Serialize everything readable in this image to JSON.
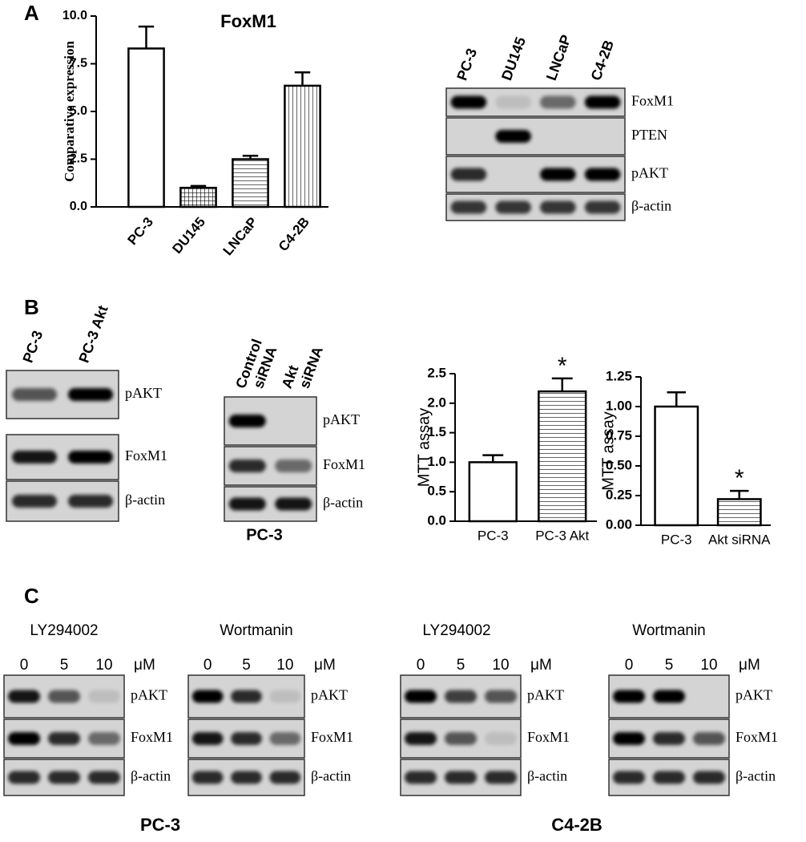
{
  "panel_labels": [
    "A",
    "B",
    "C"
  ],
  "chart_data": [
    {
      "type": "bar",
      "title": "FoxM1",
      "ylabel": "Comparative expression",
      "categories": [
        "PC-3",
        "DU145",
        "LNCaP",
        "C4-2B"
      ],
      "values": [
        8.3,
        1.0,
        2.5,
        6.35
      ],
      "errors": [
        1.15,
        0.1,
        0.18,
        0.7
      ],
      "patterns": [
        "none",
        "grid",
        "horizontal",
        "vertical"
      ],
      "color": "#000000",
      "ylim": [
        0,
        10
      ],
      "yticks": [
        {
          "value": 0,
          "label": "0.0"
        },
        2.5,
        {
          "value": 5,
          "label": "5.0"
        },
        7.5,
        {
          "value": 10,
          "label": "10.0"
        }
      ]
    },
    {
      "type": "bar",
      "ylabel": "MTT assay",
      "categories": [
        "PC-3",
        "PC-3 Akt"
      ],
      "values": [
        1.0,
        2.2
      ],
      "errors": [
        0.12,
        0.22
      ],
      "patterns": [
        "none",
        "horizontal"
      ],
      "color": "#000000",
      "annotations": [
        {
          "text": "*",
          "x": "PC-3 Akt"
        }
      ],
      "ylim": [
        0,
        2.5
      ],
      "yticks": [
        {
          "value": 0,
          "label": "0.0"
        },
        0.5,
        {
          "value": 1,
          "label": "1.0"
        },
        1.5,
        {
          "value": 2,
          "label": "2.0"
        },
        2.5
      ]
    },
    {
      "type": "bar",
      "ylabel": "MTT assay",
      "categories": [
        "PC-3",
        "Akt siRNA"
      ],
      "values": [
        1.0,
        0.22
      ],
      "errors": [
        0.12,
        0.07
      ],
      "patterns": [
        "none",
        "horizontal"
      ],
      "color": "#000000",
      "annotations": [
        {
          "text": "*",
          "x": "Akt siRNA"
        }
      ],
      "ylim": [
        0,
        1.25
      ],
      "yticks": [
        {
          "value": 0,
          "label": "0.00"
        },
        0.25,
        {
          "value": 0.5,
          "label": "0.50"
        },
        0.75,
        {
          "value": 1,
          "label": "1.00"
        },
        1.25
      ]
    }
  ],
  "blots": [
    {
      "lanes": [
        "PC-3",
        "DU145",
        "LNCaP",
        "C4-2B"
      ],
      "rows": [
        "FoxM1",
        "PTEN",
        "pAKT",
        "β-actin"
      ]
    },
    {
      "lanes": [
        "PC-3",
        "PC-3 Akt"
      ],
      "rows": [
        "pAKT",
        "FoxM1",
        "β-actin"
      ]
    },
    {
      "lanes": [
        [
          "Control",
          "siRNA"
        ],
        [
          "Akt",
          "siRNA"
        ]
      ],
      "rows": [
        "pAKT",
        "FoxM1",
        "β-actin"
      ],
      "caption": "PC-3"
    },
    {
      "treatment": "LY294002",
      "doses": [
        0,
        5,
        10
      ],
      "unit": "μM",
      "rows": [
        "pAKT",
        "FoxM1",
        "β-actin"
      ]
    },
    {
      "treatment": "Wortmanin",
      "doses": [
        0,
        5,
        10
      ],
      "unit": "μM",
      "rows": [
        "pAKT",
        "FoxM1",
        "β-actin"
      ]
    },
    {
      "treatment": "LY294002",
      "doses": [
        0,
        5,
        10
      ],
      "unit": "μM",
      "rows": [
        "pAKT",
        "FoxM1",
        "β-actin"
      ]
    },
    {
      "treatment": "Wortmanin",
      "doses": [
        0,
        5,
        10
      ],
      "unit": "μM",
      "rows": [
        "pAKT",
        "FoxM1",
        "β-actin"
      ]
    }
  ],
  "group_captions": [
    "PC-3",
    "C4-2B"
  ]
}
